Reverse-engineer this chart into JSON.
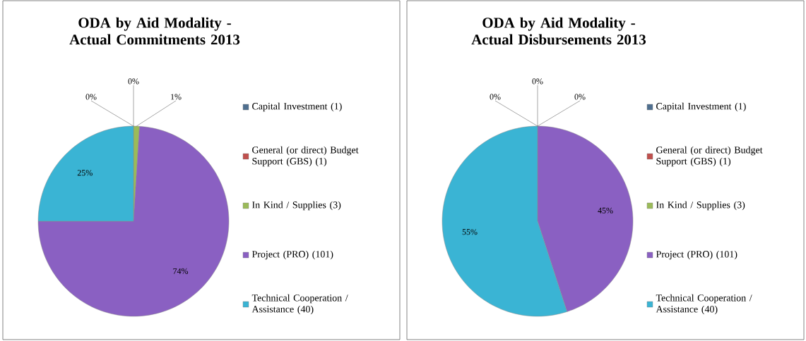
{
  "chart_data": [
    {
      "type": "pie",
      "title": "ODA by Aid Modality - Actual Commitments 2013",
      "legend": "right",
      "categories": [
        "Capital Investment (1)",
        "General (or direct) Budget Support (GBS) (1)",
        "In Kind / Supplies (3)",
        "Project (PRO) (101)",
        "Technical Cooperation / Assistance (40)"
      ],
      "values": [
        0,
        0,
        1,
        74,
        25
      ],
      "value_labels": [
        "0%",
        "0%",
        "1%",
        "74%",
        "25%"
      ],
      "colors": [
        "#4f6f8f",
        "#c0504d",
        "#9bbb59",
        "#8a60c2",
        "#3ab4d4"
      ]
    },
    {
      "type": "pie",
      "title": "ODA by Aid Modality - Actual Disbursements 2013",
      "legend": "right",
      "categories": [
        "Capital Investment (1)",
        "General (or direct) Budget Support (GBS) (1)",
        "In Kind / Supplies (3)",
        "Project (PRO) (101)",
        "Technical Cooperation / Assistance (40)"
      ],
      "values": [
        0,
        0,
        0,
        45,
        55
      ],
      "value_labels": [
        "0%",
        "0%",
        "0%",
        "45%",
        "55%"
      ],
      "colors": [
        "#4f6f8f",
        "#c0504d",
        "#9bbb59",
        "#8a60c2",
        "#3ab4d4"
      ]
    }
  ]
}
